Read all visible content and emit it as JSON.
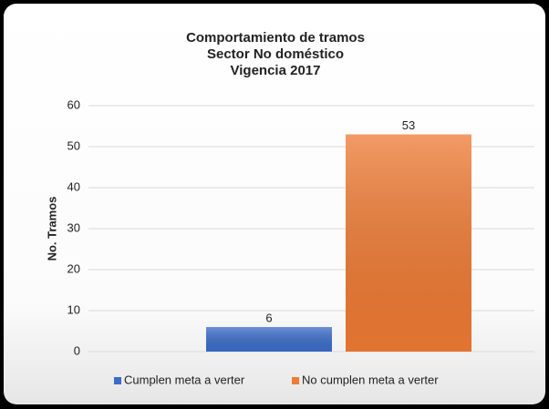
{
  "chart_data": {
    "type": "bar",
    "title": [
      "Comportamiento  de tramos",
      "Sector No doméstico",
      "Vigencia 2017"
    ],
    "ylabel": "No. Tramos",
    "categories": [
      null
    ],
    "series": [
      {
        "name": "Cumplen meta a verter",
        "color": "#3b6cc8",
        "values": [
          6
        ]
      },
      {
        "name": "No cumplen meta a verter",
        "color": "#ee7a33",
        "values": [
          53
        ]
      }
    ],
    "ylim": [
      0,
      60
    ],
    "yticks": [
      0,
      10,
      20,
      30,
      40,
      50,
      60
    ],
    "grid": true,
    "legend": "bottom"
  }
}
